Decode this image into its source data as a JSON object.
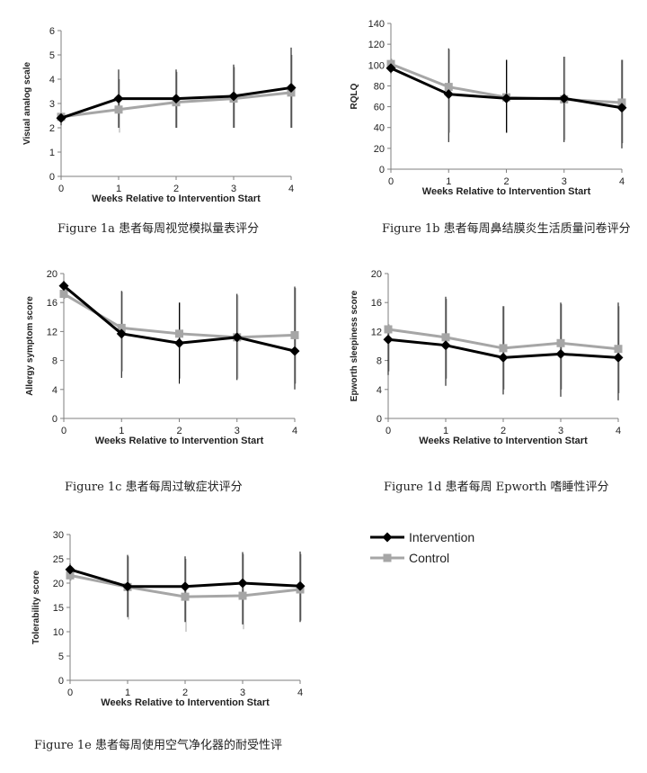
{
  "legend": {
    "items": [
      {
        "name": "Intervention",
        "color": "#000000",
        "marker": "diamond"
      },
      {
        "name": "Control",
        "color": "#a6a6a6",
        "marker": "square"
      }
    ]
  },
  "chart_data": [
    {
      "id": "1a",
      "type": "line",
      "caption": "Figure 1a 患者每周视觉模拟量表评分",
      "xlabel": "Weeks Relative to Intervention Start",
      "ylabel": "Visual analog scale",
      "x": [
        0,
        1,
        2,
        3,
        4
      ],
      "xticks": [
        "0",
        "1",
        "2",
        "3",
        "4"
      ],
      "ylim": [
        0,
        6
      ],
      "yticks": [
        0,
        1,
        2,
        3,
        4,
        5,
        6
      ],
      "series": [
        {
          "name": "Intervention",
          "values": [
            2.4,
            3.2,
            3.2,
            3.3,
            3.65
          ],
          "err_low": [
            2.1,
            2.0,
            2.0,
            2.0,
            2.0
          ],
          "err_high": [
            2.6,
            4.4,
            4.4,
            4.6,
            5.3
          ]
        },
        {
          "name": "Control",
          "values": [
            2.45,
            2.75,
            3.05,
            3.2,
            3.45
          ],
          "err_low": [
            2.3,
            1.8,
            2.0,
            2.0,
            2.0
          ],
          "err_high": [
            2.6,
            4.0,
            4.3,
            4.5,
            5.0
          ]
        }
      ]
    },
    {
      "id": "1b",
      "type": "line",
      "caption": "Figure 1b 患者每周鼻结膜炎生活质量问卷评分",
      "xlabel": "Weeks Relative to Intervention Start",
      "ylabel": "RQLQ",
      "x": [
        0,
        1,
        2,
        3,
        4
      ],
      "xticks": [
        "0",
        "1",
        "2",
        "3",
        "4"
      ],
      "ylim": [
        0,
        140
      ],
      "yticks": [
        0,
        20,
        40,
        60,
        80,
        100,
        120,
        140
      ],
      "series": [
        {
          "name": "Intervention",
          "values": [
            97,
            72,
            68,
            68,
            59
          ],
          "err_low": [
            92,
            26,
            35,
            26,
            20
          ],
          "err_high": [
            102,
            116,
            105,
            108,
            105
          ]
        },
        {
          "name": "Control",
          "values": [
            101,
            79,
            69,
            67,
            64
          ],
          "err_low": [
            96,
            35,
            35,
            28,
            25
          ],
          "err_high": [
            106,
            115,
            105,
            108,
            105
          ]
        }
      ]
    },
    {
      "id": "1c",
      "type": "line",
      "caption": "Figure 1c 患者每周过敏症状评分",
      "xlabel": "Weeks Relative to Intervention Start",
      "ylabel": "Allergy symptom score",
      "x": [
        0,
        1,
        2,
        3,
        4
      ],
      "xticks": [
        "0",
        "1",
        "2",
        "3",
        "4"
      ],
      "ylim": [
        0,
        20
      ],
      "yticks": [
        0,
        4,
        8,
        12,
        16,
        20
      ],
      "series": [
        {
          "name": "Intervention",
          "values": [
            18.3,
            11.7,
            10.4,
            11.2,
            9.3
          ],
          "err_low": [
            17.5,
            5.6,
            4.8,
            5.3,
            4.0
          ],
          "err_high": [
            19.0,
            17.6,
            16.0,
            17.2,
            18.2
          ]
        },
        {
          "name": "Control",
          "values": [
            17.2,
            12.5,
            11.7,
            11.2,
            11.5
          ],
          "err_low": [
            16.5,
            6.5,
            5.5,
            5.5,
            4.8
          ],
          "err_high": [
            18.0,
            17.5,
            16.0,
            17.0,
            18.0
          ]
        }
      ]
    },
    {
      "id": "1d",
      "type": "line",
      "caption": "Figure 1d 患者每周 Epworth 嗜睡性评分",
      "xlabel": "Weeks Relative to Intervention Start",
      "ylabel": "Epworth sleepiness score",
      "x": [
        0,
        1,
        2,
        3,
        4
      ],
      "xticks": [
        "0",
        "1",
        "2",
        "3",
        "4"
      ],
      "ylim": [
        0,
        20
      ],
      "yticks": [
        0,
        4,
        8,
        12,
        16,
        20
      ],
      "series": [
        {
          "name": "Intervention",
          "values": [
            10.9,
            10.1,
            8.4,
            8.9,
            8.4
          ],
          "err_low": [
            6.0,
            4.5,
            3.3,
            3.0,
            2.5
          ],
          "err_high": [
            12.0,
            16.8,
            15.5,
            16.0,
            16.0
          ]
        },
        {
          "name": "Control",
          "values": [
            12.3,
            11.2,
            9.7,
            10.4,
            9.6
          ],
          "err_low": [
            6.5,
            5.5,
            4.0,
            4.0,
            3.5
          ],
          "err_high": [
            13.0,
            16.5,
            15.5,
            15.8,
            15.5
          ]
        }
      ]
    },
    {
      "id": "1e",
      "type": "line",
      "caption": "Figure 1e 患者每周使用空气净化器的耐受性评",
      "xlabel": "Weeks Relative to Intervention Start",
      "ylabel": "Tolerability score",
      "x": [
        0,
        1,
        2,
        3,
        4
      ],
      "xticks": [
        "0",
        "1",
        "2",
        "3",
        "4"
      ],
      "ylim": [
        0,
        30
      ],
      "yticks": [
        0,
        5,
        10,
        15,
        20,
        25,
        30
      ],
      "series": [
        {
          "name": "Intervention",
          "values": [
            22.8,
            19.3,
            19.3,
            20.0,
            19.4
          ],
          "err_low": [
            21.5,
            13.0,
            12.0,
            11.5,
            12.0
          ],
          "err_high": [
            24.0,
            25.8,
            25.5,
            26.4,
            26.5
          ]
        },
        {
          "name": "Control",
          "values": [
            21.6,
            19.2,
            17.2,
            17.4,
            18.7
          ],
          "err_low": [
            20.5,
            12.5,
            10.0,
            10.5,
            12.3
          ],
          "err_high": [
            22.5,
            25.5,
            25.0,
            26.0,
            26.0
          ]
        }
      ]
    }
  ]
}
